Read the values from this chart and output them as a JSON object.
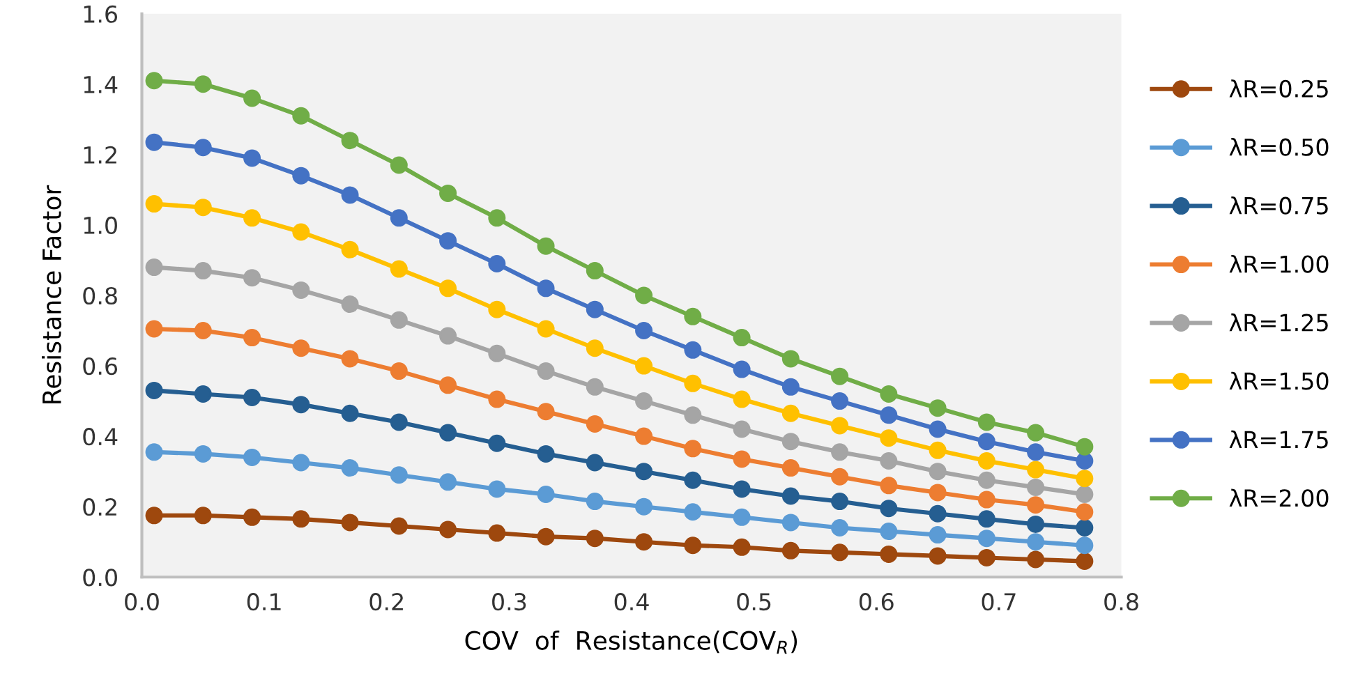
{
  "chart_data": {
    "type": "line",
    "xlabel": "COV  of  Resistance(COV$_{R}$)",
    "ylabel": "Resistance Factor",
    "x": [
      0.01,
      0.05,
      0.09,
      0.13,
      0.17,
      0.21,
      0.25,
      0.29,
      0.33,
      0.37,
      0.41,
      0.45,
      0.49,
      0.53,
      0.57,
      0.61,
      0.65,
      0.69,
      0.73,
      0.77
    ],
    "xlim": [
      0,
      0.8
    ],
    "xticks": [
      {
        "value": 0,
        "label": "0.0"
      },
      0.1,
      0.2,
      0.3,
      0.4,
      0.5,
      0.6,
      0.7,
      0.8
    ],
    "ylim": [
      0,
      1.6
    ],
    "yticks": [
      {
        "value": 0,
        "label": "0.0"
      },
      0.2,
      0.4,
      0.6,
      0.8,
      {
        "value": 1,
        "label": "1.0"
      },
      1.2,
      1.4,
      1.6
    ],
    "grid": false,
    "legend": "right",
    "marker": "circle",
    "line_style": "solid",
    "series": [
      {
        "name": "λR=0.25",
        "color": "#9e480e",
        "values": [
          0.175,
          0.175,
          0.17,
          0.165,
          0.155,
          0.145,
          0.135,
          0.125,
          0.115,
          0.11,
          0.1,
          0.09,
          0.085,
          0.075,
          0.07,
          0.065,
          0.06,
          0.055,
          0.05,
          0.045
        ]
      },
      {
        "name": "λR=0.50",
        "color": "#5b9bd5",
        "values": [
          0.355,
          0.35,
          0.34,
          0.325,
          0.31,
          0.29,
          0.27,
          0.25,
          0.235,
          0.215,
          0.2,
          0.185,
          0.17,
          0.155,
          0.14,
          0.13,
          0.12,
          0.11,
          0.1,
          0.09
        ]
      },
      {
        "name": "λR=0.75",
        "color": "#255e91",
        "values": [
          0.53,
          0.52,
          0.51,
          0.49,
          0.465,
          0.44,
          0.41,
          0.38,
          0.35,
          0.325,
          0.3,
          0.275,
          0.25,
          0.23,
          0.215,
          0.195,
          0.18,
          0.165,
          0.15,
          0.14
        ]
      },
      {
        "name": "λR=1.00",
        "color": "#ed7d31",
        "values": [
          0.705,
          0.7,
          0.68,
          0.65,
          0.62,
          0.585,
          0.545,
          0.505,
          0.47,
          0.435,
          0.4,
          0.365,
          0.335,
          0.31,
          0.285,
          0.26,
          0.24,
          0.22,
          0.205,
          0.185
        ]
      },
      {
        "name": "λR=1.25",
        "color": "#a5a5a5",
        "values": [
          0.88,
          0.87,
          0.85,
          0.815,
          0.775,
          0.73,
          0.685,
          0.635,
          0.585,
          0.54,
          0.5,
          0.46,
          0.42,
          0.385,
          0.355,
          0.33,
          0.3,
          0.275,
          0.255,
          0.235
        ]
      },
      {
        "name": "λR=1.50",
        "color": "#ffc000",
        "values": [
          1.06,
          1.05,
          1.02,
          0.98,
          0.93,
          0.875,
          0.82,
          0.76,
          0.705,
          0.65,
          0.6,
          0.55,
          0.505,
          0.465,
          0.43,
          0.395,
          0.36,
          0.33,
          0.305,
          0.28
        ]
      },
      {
        "name": "λR=1.75",
        "color": "#4472c4",
        "values": [
          1.235,
          1.22,
          1.19,
          1.14,
          1.085,
          1.02,
          0.955,
          0.89,
          0.82,
          0.76,
          0.7,
          0.645,
          0.59,
          0.54,
          0.5,
          0.46,
          0.42,
          0.385,
          0.355,
          0.33
        ]
      },
      {
        "name": "λR=2.00",
        "color": "#70ad47",
        "values": [
          1.41,
          1.4,
          1.36,
          1.31,
          1.24,
          1.17,
          1.09,
          1.02,
          0.94,
          0.87,
          0.8,
          0.74,
          0.68,
          0.62,
          0.57,
          0.52,
          0.48,
          0.44,
          0.41,
          0.37
        ]
      }
    ]
  }
}
